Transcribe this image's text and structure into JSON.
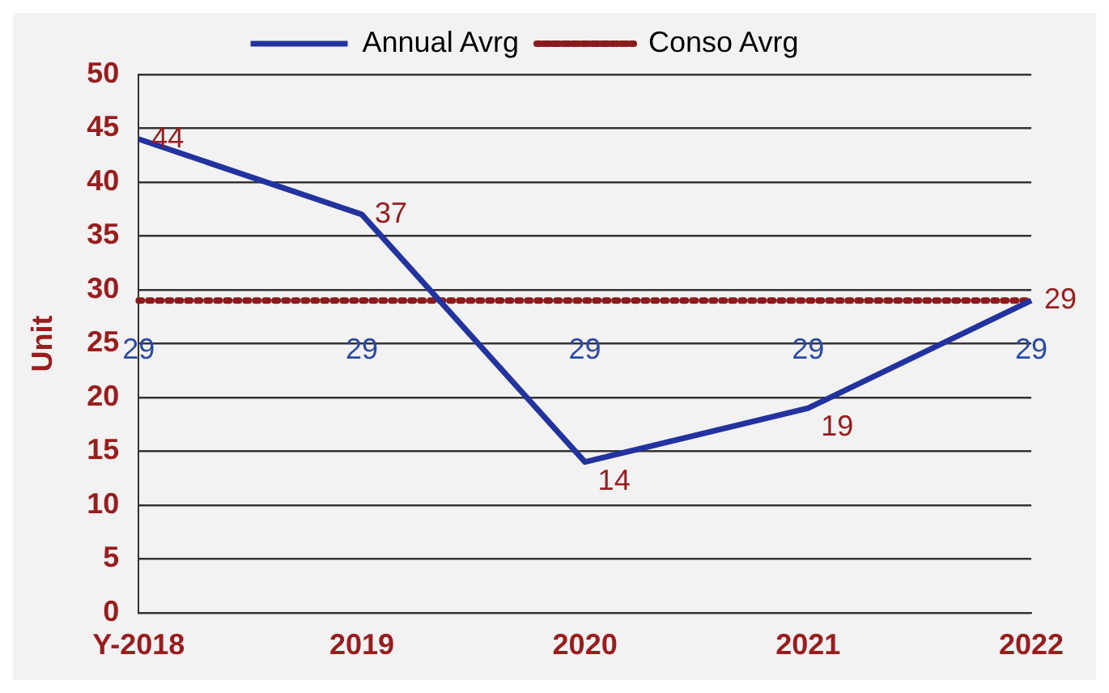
{
  "chart_data": {
    "type": "line",
    "ylabel": "Unit",
    "categories": [
      "Y-2018",
      "2019",
      "2020",
      "2021",
      "2022"
    ],
    "series": [
      {
        "name": "Annual Avrg",
        "color": "#2233a0",
        "values": [
          44,
          37,
          14,
          19,
          29
        ],
        "line_style": "solid"
      },
      {
        "name": "Conso Avrg",
        "color": "#8b1a1a",
        "values": [
          29,
          29,
          29,
          29,
          29
        ],
        "line_style": "dotted"
      }
    ],
    "ylim": [
      0,
      50
    ],
    "yticks": [
      0,
      5,
      10,
      15,
      20,
      25,
      30,
      35,
      40,
      45,
      50
    ],
    "grid": "y",
    "legend": "top",
    "marker": "none",
    "data_labels": true
  }
}
